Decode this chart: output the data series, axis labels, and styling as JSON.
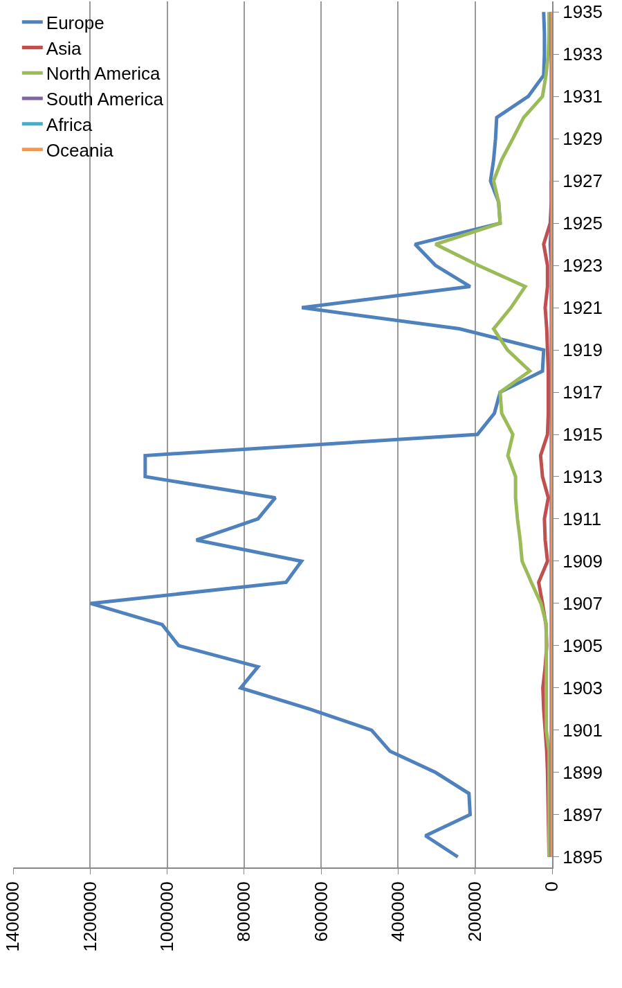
{
  "chart_data": {
    "type": "line",
    "orientation": "horizontal",
    "categories": [
      "1935",
      null,
      "1933",
      null,
      "1931",
      null,
      "1929",
      null,
      "1927",
      null,
      "1925",
      null,
      "1923",
      null,
      "1921",
      null,
      "1919",
      null,
      "1917",
      null,
      "1915",
      null,
      "1913",
      null,
      "1911",
      null,
      "1909",
      null,
      "1907",
      null,
      "1905",
      null,
      "1903",
      null,
      "1901",
      null,
      "1899",
      null,
      "1897",
      null,
      "1895"
    ],
    "series": [
      {
        "name": "Europe",
        "color": "#4f81bd",
        "values": [
          22000,
          20000,
          20000,
          22000,
          62000,
          144000,
          147000,
          152000,
          160000,
          139000,
          135000,
          356000,
          303000,
          213000,
          650000,
          241000,
          22000,
          25000,
          135000,
          150000,
          194000,
          1057000,
          1057000,
          719000,
          764000,
          924000,
          651000,
          691000,
          1199000,
          1013000,
          970000,
          764000,
          809000,
          630000,
          469000,
          421000,
          303000,
          216000,
          213000,
          329000,
          245000
        ]
      },
      {
        "name": "Asia",
        "color": "#c0504d",
        "values": [
          null,
          null,
          null,
          null,
          null,
          null,
          null,
          null,
          2000,
          2000,
          5000,
          22000,
          12000,
          12000,
          18000,
          14000,
          12000,
          10000,
          10000,
          10000,
          12000,
          30000,
          25000,
          10000,
          20000,
          18000,
          12000,
          35000,
          25000,
          16000,
          14000,
          18000,
          24000,
          22000,
          18000,
          14000,
          12000,
          11000,
          10000,
          9000,
          8000
        ]
      },
      {
        "name": "North America",
        "color": "#9bbb59",
        "values": [
          8000,
          8000,
          10000,
          16000,
          25000,
          74000,
          102000,
          131000,
          152000,
          139000,
          135000,
          303000,
          192000,
          70000,
          107000,
          152000,
          116000,
          58000,
          135000,
          131000,
          102000,
          115000,
          95000,
          95000,
          90000,
          83000,
          78000,
          54000,
          29000,
          15000,
          15000,
          15000,
          15000,
          15000,
          15000,
          8000,
          8000,
          8000,
          8000,
          8000,
          8000
        ]
      },
      {
        "name": "South America",
        "color": "#8064a2",
        "values": [
          2000,
          2000,
          2000,
          2000,
          2000,
          2000,
          2000,
          2000,
          2000,
          2000,
          2000,
          5000,
          2000,
          2000,
          2000,
          2000,
          2000,
          2000,
          2000,
          2000,
          2000,
          2000,
          2000,
          2000,
          2000,
          2000,
          2000,
          2000,
          2000,
          2000,
          2000,
          2000,
          2000,
          2000,
          2000,
          2000,
          2000,
          2000,
          2000,
          2000,
          2000
        ]
      },
      {
        "name": "Africa",
        "color": "#4bacc6",
        "values": [
          null,
          null,
          null,
          null,
          null,
          null,
          null,
          null,
          null,
          null,
          null,
          null,
          null,
          null,
          null,
          null,
          null,
          null,
          null,
          null,
          null,
          null,
          null,
          null,
          null,
          null,
          null,
          null,
          null,
          null,
          null,
          null,
          null,
          null,
          null,
          null,
          null,
          null,
          null,
          null,
          null
        ]
      },
      {
        "name": "Oceania",
        "color": "#f79646",
        "values": [
          0,
          0,
          0,
          0,
          0,
          0,
          0,
          0,
          0,
          0,
          0,
          0,
          0,
          0,
          0,
          0,
          0,
          0,
          0,
          0,
          0,
          0,
          0,
          0,
          0,
          0,
          0,
          0,
          0,
          0,
          0,
          0,
          0,
          0,
          0,
          0,
          0,
          0,
          0,
          0,
          0
        ]
      }
    ],
    "xlim": [
      1400000,
      0
    ],
    "xticks": [
      0,
      200000,
      400000,
      600000,
      800000,
      1000000,
      1200000,
      1400000
    ],
    "grid": "x",
    "legend": "top left",
    "marker": "none",
    "line_style": "solid"
  }
}
